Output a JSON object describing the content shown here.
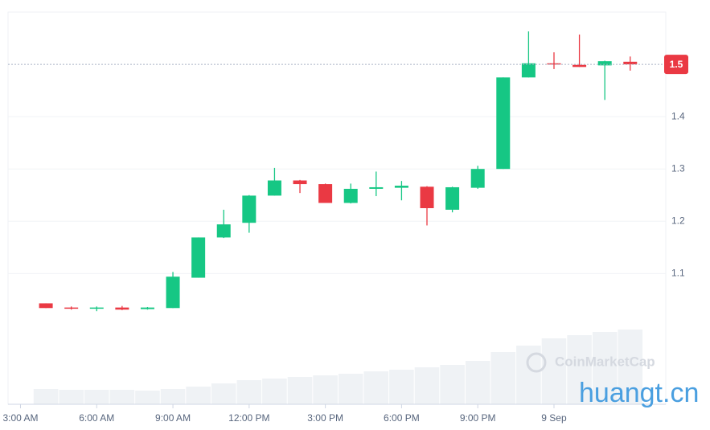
{
  "chart_data": {
    "type": "candlestick",
    "x": [
      4,
      5,
      6,
      7,
      8,
      9,
      10,
      11,
      12,
      13,
      14,
      15,
      16,
      17,
      18,
      19,
      20,
      21,
      22,
      23,
      24,
      25,
      26,
      27
    ],
    "open": [
      1.043,
      1.035,
      1.034,
      1.035,
      1.032,
      1.034,
      1.092,
      1.169,
      1.197,
      1.249,
      1.278,
      1.271,
      1.235,
      1.262,
      1.264,
      1.266,
      1.222,
      1.264,
      1.3,
      1.475,
      1.502,
      1.499,
      1.498,
      1.505
    ],
    "high": [
      1.043,
      1.037,
      1.037,
      1.038,
      1.036,
      1.103,
      1.169,
      1.222,
      1.25,
      1.302,
      1.279,
      1.272,
      1.272,
      1.295,
      1.277,
      1.267,
      1.266,
      1.306,
      1.475,
      1.563,
      1.523,
      1.557,
      1.507,
      1.515
    ],
    "low": [
      1.034,
      1.031,
      1.028,
      1.03,
      1.031,
      1.034,
      1.092,
      1.168,
      1.178,
      1.249,
      1.254,
      1.235,
      1.234,
      1.248,
      1.24,
      1.192,
      1.217,
      1.262,
      1.3,
      1.475,
      1.491,
      1.495,
      1.432,
      1.488
    ],
    "close": [
      1.034,
      1.034,
      1.035,
      1.031,
      1.035,
      1.094,
      1.169,
      1.194,
      1.249,
      1.278,
      1.271,
      1.235,
      1.262,
      1.265,
      1.268,
      1.225,
      1.265,
      1.3,
      1.475,
      1.502,
      1.5,
      1.495,
      1.506,
      1.5
    ],
    "volume": [
      19,
      18,
      18,
      18,
      17,
      19,
      22,
      26,
      30,
      32,
      34,
      36,
      38,
      41,
      43,
      46,
      49,
      54,
      65,
      73,
      82,
      86,
      90,
      93
    ],
    "volume_ylim": [
      0,
      100
    ],
    "up_color": "#16c784",
    "down_color": "#ea3943",
    "volume_color": "#eff2f5",
    "xlim": [
      2.51,
      28.4
    ],
    "xticks": [
      {
        "value": 3,
        "label": "3:00 AM"
      },
      {
        "value": 6,
        "label": "6:00 AM"
      },
      {
        "value": 9,
        "label": "9:00 AM"
      },
      {
        "value": 12,
        "label": "12:00 PM"
      },
      {
        "value": 15,
        "label": "3:00 PM"
      },
      {
        "value": 18,
        "label": "6:00 PM"
      },
      {
        "value": 21,
        "label": "9:00 PM"
      },
      {
        "value": 24,
        "label": "9 Sep"
      }
    ],
    "ylim": [
      0.85,
      1.6
    ],
    "yticks": [
      1.1,
      1.2,
      1.3,
      1.4
    ],
    "last_price": 1.5,
    "grid": true,
    "watermark": "CoinMarketCap",
    "site_watermark": "huangt.cn"
  }
}
